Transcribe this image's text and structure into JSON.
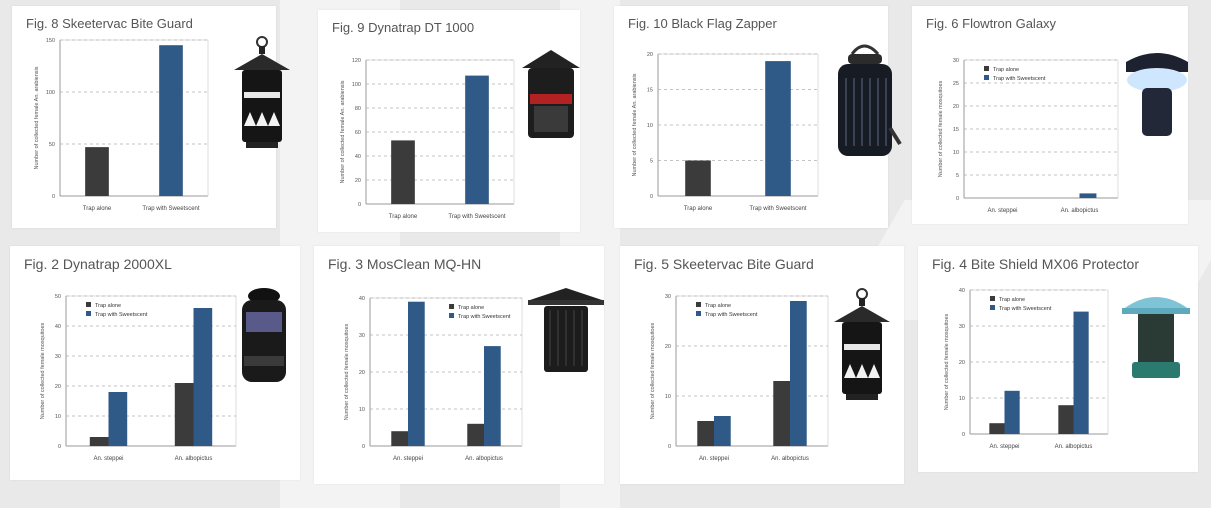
{
  "colors": {
    "trap_alone": "#3b3b3b",
    "trap_with_sweetscent": "#2f5a87",
    "grid": "#b0b0b0",
    "panel": "#ffffff"
  },
  "chart_data": [
    {
      "type": "bar",
      "title": "Fig. 8 Skeetervac Bite Guard",
      "ylabel": "Number of collected female An. arabiensis",
      "ylim": [
        0,
        150
      ],
      "yticks": [
        "150",
        "100",
        "50",
        "0"
      ],
      "grid": true,
      "legend": "none",
      "categories": [
        "Trap alone",
        "Trap with Sweetscent"
      ],
      "series": [
        {
          "values": [
            47,
            145
          ]
        }
      ],
      "product_icon": "skeetervac-icon"
    },
    {
      "type": "bar",
      "title": "Fig. 9 Dynatrap DT 1000",
      "ylabel": "Number of collected female An. arabiensis",
      "ylim": [
        0,
        120
      ],
      "yticks": [
        "120",
        "100",
        "80",
        "60",
        "40",
        "20",
        "0"
      ],
      "grid": true,
      "legend": "none",
      "categories": [
        "Trap alone",
        "Trap with Sweetscent"
      ],
      "series": [
        {
          "values": [
            53,
            107
          ]
        }
      ],
      "product_icon": "dynatrap-dt1000-icon"
    },
    {
      "type": "bar",
      "title": "Fig. 10 Black Flag Zapper",
      "ylabel": "Number of collected female An. arabiensis",
      "ylim": [
        0,
        20
      ],
      "yticks": [
        "20",
        "15",
        "10",
        "5",
        "0"
      ],
      "grid": true,
      "legend": "none",
      "categories": [
        "Trap alone",
        "Trap with Sweetscent"
      ],
      "series": [
        {
          "values": [
            5,
            19
          ]
        }
      ],
      "product_icon": "black-flag-zapper-icon"
    },
    {
      "type": "bar",
      "title": "Fig. 6 Flowtron Galaxy",
      "ylabel": "Number of collected female mosquitoes",
      "ylim": [
        0,
        30
      ],
      "yticks": [
        "30",
        "25",
        "20",
        "15",
        "10",
        "5",
        "0"
      ],
      "grid": true,
      "legend": "top-left",
      "categories": [
        "An. steppei",
        "An. albopictus"
      ],
      "series": [
        {
          "name": "Trap alone",
          "values": [
            0,
            0
          ]
        },
        {
          "name": "Trap with Sweetscent",
          "values": [
            0,
            1
          ]
        }
      ],
      "product_icon": "flowtron-galaxy-icon"
    },
    {
      "type": "bar",
      "title": "Fig. 2 Dynatrap 2000XL",
      "ylabel": "Number of collected female mosquitoes",
      "ylim": [
        0,
        50
      ],
      "yticks": [
        "50",
        "40",
        "30",
        "20",
        "10",
        "0"
      ],
      "grid": true,
      "legend": "top-left",
      "categories": [
        "An. steppei",
        "An. albopictus"
      ],
      "series": [
        {
          "name": "Trap alone",
          "values": [
            3,
            21
          ]
        },
        {
          "name": "Trap with Sweetscent",
          "values": [
            18,
            46
          ]
        }
      ],
      "product_icon": "dynatrap-2000xl-icon"
    },
    {
      "type": "bar",
      "title": "Fig. 3 MosClean MQ-HN",
      "ylabel": "Number of collected female mosquitoes",
      "ylim": [
        0,
        40
      ],
      "yticks": [
        "40",
        "30",
        "20",
        "10",
        "0"
      ],
      "grid": true,
      "legend": "top-right",
      "categories": [
        "An. steppei",
        "An. albopictus"
      ],
      "series": [
        {
          "name": "Trap alone",
          "values": [
            4,
            6
          ]
        },
        {
          "name": "Trap with Sweetscent",
          "values": [
            39,
            27
          ]
        }
      ],
      "product_icon": "mosclean-icon"
    },
    {
      "type": "bar",
      "title": "Fig. 5 Skeetervac Bite Guard",
      "ylabel": "Number of collected female mosquitoes",
      "ylim": [
        0,
        30
      ],
      "yticks": [
        "30",
        "20",
        "10",
        "0"
      ],
      "grid": true,
      "legend": "top-left",
      "categories": [
        "An. steppei",
        "An. albopictus"
      ],
      "series": [
        {
          "name": "Trap alone",
          "values": [
            5,
            13
          ]
        },
        {
          "name": "Trap with Sweetscent",
          "values": [
            6,
            29
          ]
        }
      ],
      "product_icon": "skeetervac-icon"
    },
    {
      "type": "bar",
      "title": "Fig. 4 Bite Shield MX06 Protector",
      "ylabel": "Number of collected female mosquitoes",
      "ylim": [
        0,
        40
      ],
      "yticks": [
        "40",
        "30",
        "20",
        "10",
        "0"
      ],
      "grid": true,
      "legend": "top-left",
      "categories": [
        "An. steppei",
        "An. albopictus"
      ],
      "series": [
        {
          "name": "Trap alone",
          "values": [
            3,
            8
          ]
        },
        {
          "name": "Trap with Sweetscent",
          "values": [
            12,
            34
          ]
        }
      ],
      "product_icon": "bite-shield-icon"
    }
  ]
}
